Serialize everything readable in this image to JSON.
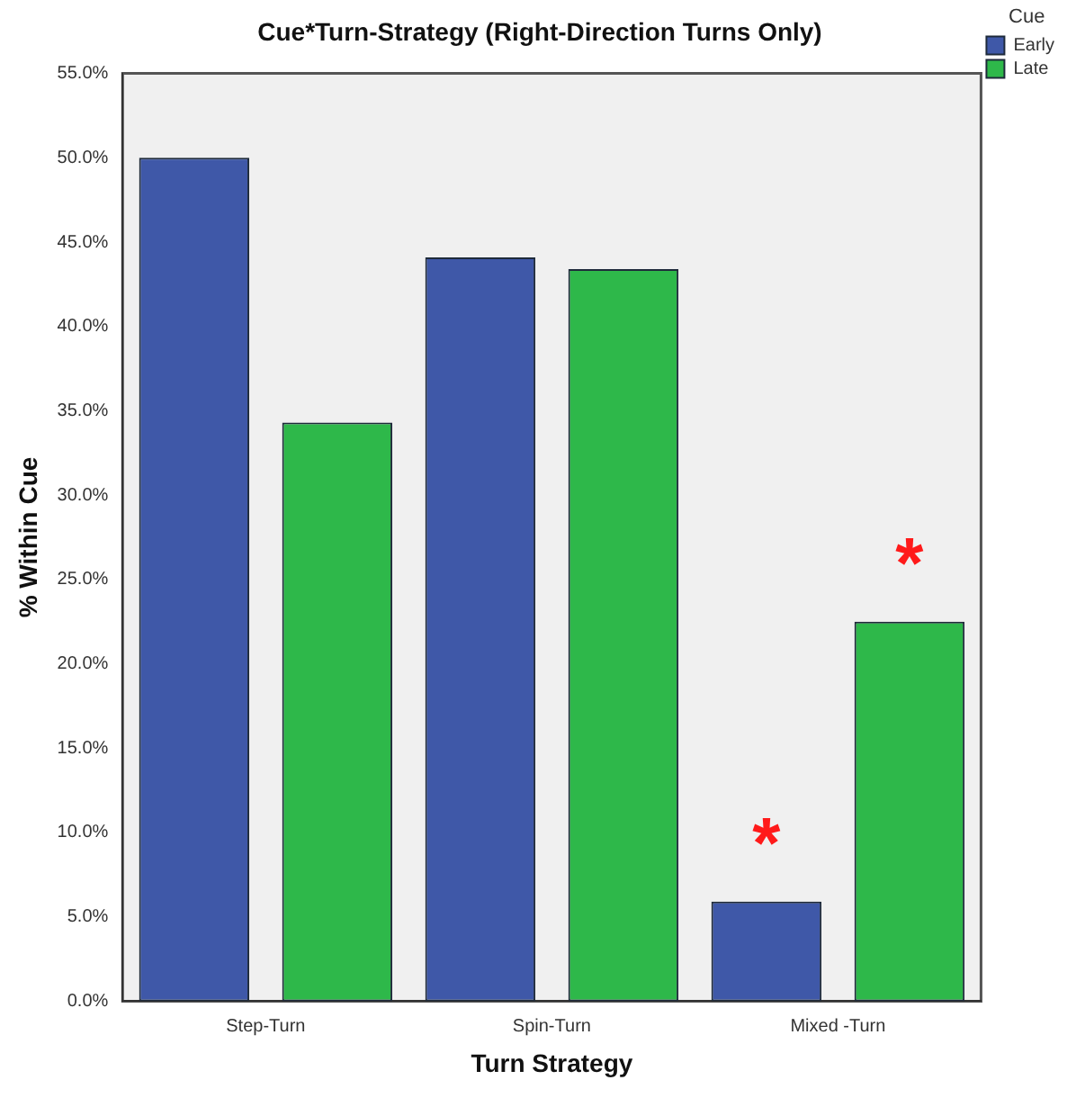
{
  "chart_data": {
    "type": "bar",
    "title": "Cue*Turn-Strategy (Right-Direction Turns Only)",
    "xlabel": "Turn Strategy",
    "ylabel": "% Within Cue",
    "legend_title": "Cue",
    "legend": "top right",
    "grid": false,
    "categories": [
      "Step-Turn",
      "Spin-Turn",
      "Mixed -Turn"
    ],
    "series": [
      {
        "name": "Early",
        "color": "#3f58a8",
        "values": [
          50.0,
          44.1,
          5.9
        ]
      },
      {
        "name": "Late",
        "color": "#2eb84a",
        "values": [
          34.3,
          43.4,
          22.5
        ]
      }
    ],
    "ylim": [
      0,
      55
    ],
    "yticks": [
      {
        "value": 0,
        "label": "0.0%"
      },
      {
        "value": 5,
        "label": "5.0%"
      },
      {
        "value": 10,
        "label": "10.0%"
      },
      {
        "value": 15,
        "label": "15.0%"
      },
      {
        "value": 20,
        "label": "20.0%"
      },
      {
        "value": 25,
        "label": "25.0%"
      },
      {
        "value": 30,
        "label": "30.0%"
      },
      {
        "value": 35,
        "label": "35.0%"
      },
      {
        "value": 40,
        "label": "40.0%"
      },
      {
        "value": 45,
        "label": "45.0%"
      },
      {
        "value": 50,
        "label": "50.0%"
      },
      {
        "value": 55,
        "label": "55.0%"
      }
    ],
    "annotations": [
      "*",
      "*"
    ]
  }
}
